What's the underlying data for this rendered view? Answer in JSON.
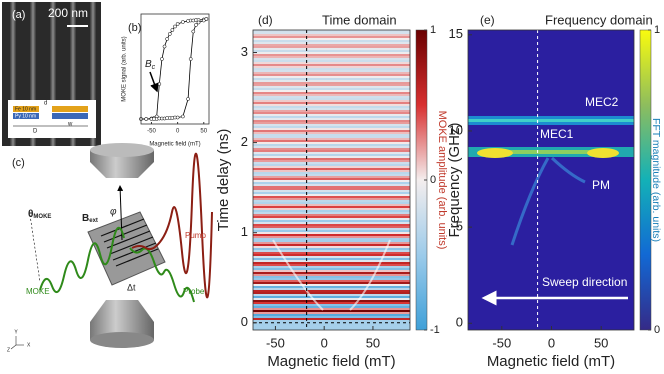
{
  "panel_a": {
    "label": "(a)",
    "scale_bar": "200 nm",
    "layers": [
      "Fe 10 nm",
      "Py 10 nm"
    ],
    "dims": [
      "d",
      "D",
      "w"
    ]
  },
  "panel_c": {
    "label": "(c)",
    "theta": "θ",
    "theta_sub": "MOKE",
    "field": "B",
    "field_sub": "ext",
    "angle": "φ",
    "pump": "Pump",
    "probe": "Probe",
    "moke": "MOKE",
    "delay": "Δt",
    "axes": [
      "Y",
      "X",
      "Z"
    ]
  },
  "chart_data": [
    {
      "type": "line",
      "label": "(b)",
      "xlabel": "Magnetic field (mT)",
      "ylabel": "MOKE signal (arb. units)",
      "x": [
        -70,
        -60,
        -50,
        -45,
        -40,
        -35,
        -30,
        -25,
        -20,
        -15,
        -10,
        -5,
        0,
        10,
        20,
        25,
        30,
        35,
        40,
        50,
        55
      ],
      "series": [
        {
          "color": "#000000",
          "values": [
            -1,
            -1,
            -0.99,
            -0.98,
            -0.95,
            -0.3,
            0.2,
            0.45,
            0.6,
            0.7,
            0.78,
            0.85,
            0.9,
            0.94,
            0.96,
            0.97,
            0.97,
            0.98,
            0.98,
            0.99,
            1
          ]
        },
        {
          "color": "#000000",
          "values": [
            -1,
            -1,
            -1,
            -1,
            -1,
            -0.99,
            -0.99,
            -0.99,
            -0.98,
            -0.98,
            -0.98,
            -0.97,
            -0.97,
            -0.95,
            -0.6,
            0.2,
            0.75,
            0.88,
            0.93,
            0.97,
            1
          ]
        }
      ],
      "xlim": [
        -70,
        60
      ],
      "ylim": [
        -1.1,
        1.1
      ],
      "xticks": [
        -50,
        0,
        50
      ],
      "annotation": {
        "text": "B",
        "sub": "c"
      }
    },
    {
      "type": "heatmap",
      "label": "(d)",
      "title": "Time domain",
      "xlabel": "Magnetic field (mT)",
      "ylabel": "Time delay (ns)",
      "xlim": [
        -73,
        88
      ],
      "ylim": [
        -0.08,
        3.25
      ],
      "xticks": [
        -50,
        0,
        50
      ],
      "yticks": [
        0,
        1,
        2,
        3
      ],
      "marker_x": -18,
      "marker_y": 0,
      "colorbar": {
        "label": "MOKE amplitude (arb. units)",
        "lim": [
          -1,
          1
        ],
        "ticks": [
          1,
          0,
          -1
        ]
      }
    },
    {
      "type": "heatmap",
      "label": "(e)",
      "title": "Frequency domain",
      "xlabel": "Magnetic field (mT)",
      "ylabel": "Frequency (GHz)",
      "xlim": [
        -84,
        83
      ],
      "ylim": [
        -0.35,
        15.25
      ],
      "xticks": [
        -50,
        0,
        50
      ],
      "yticks": [
        0,
        5,
        10,
        15
      ],
      "marker_x": -14,
      "colorbar": {
        "label": "FFT magnitude (arb. units)",
        "lim": [
          0,
          1
        ],
        "ticks": [
          1,
          0
        ]
      },
      "annotations": [
        "MEC2",
        "MEC1",
        "PM",
        "Sweep direction"
      ]
    }
  ]
}
